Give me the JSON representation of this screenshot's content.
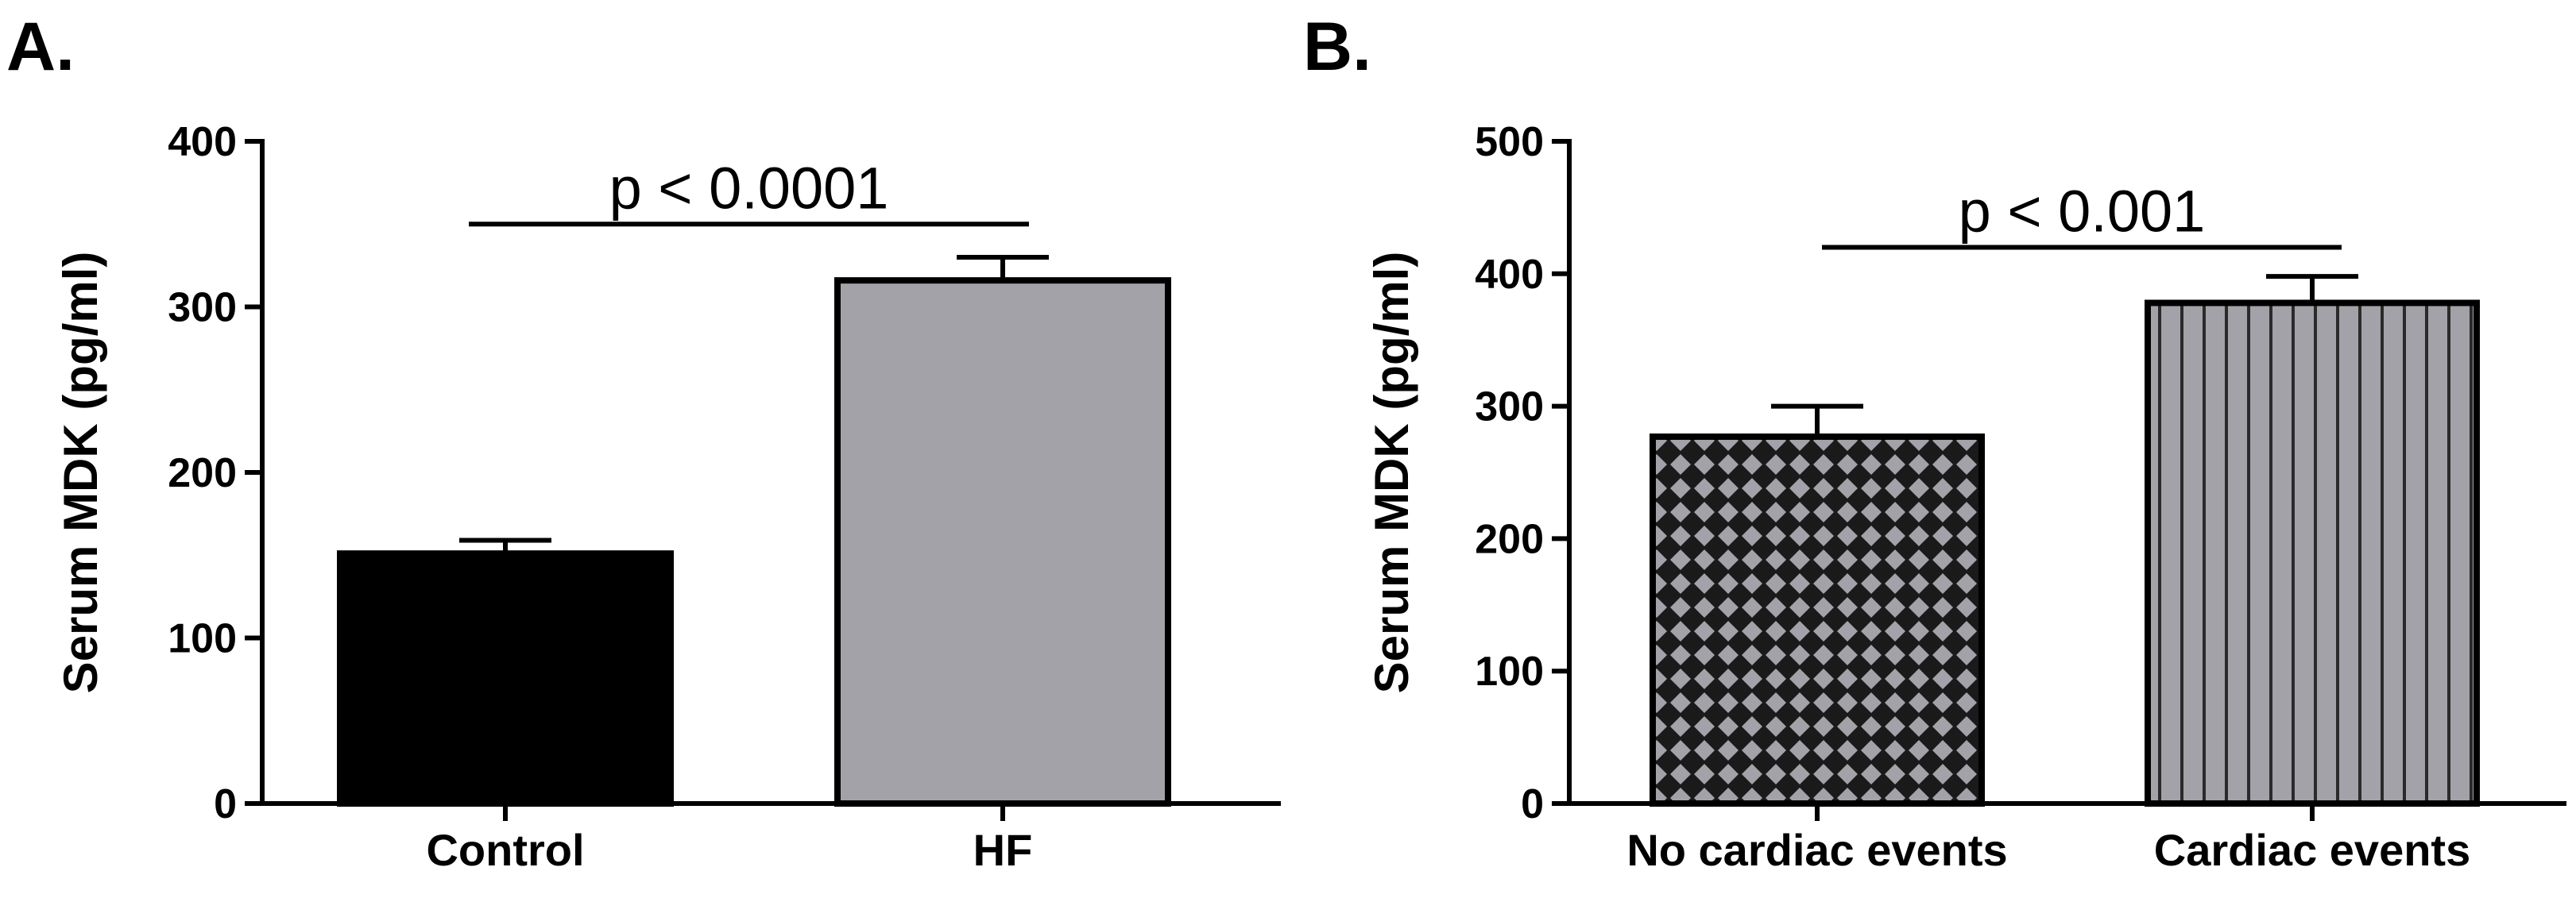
{
  "chart_data": [
    {
      "panel": "A.",
      "type": "bar",
      "ylabel": "Serum MDK (pg/ml)",
      "ylim": [
        0,
        400
      ],
      "yticks": [
        0,
        100,
        200,
        300,
        400
      ],
      "categories": [
        "Control",
        "HF"
      ],
      "values": [
        151,
        316
      ],
      "errors": [
        8,
        14
      ],
      "bar_colors": [
        "#000000",
        "#a3a2a8"
      ],
      "patterns": [
        "solid",
        "solid"
      ],
      "significance": {
        "label": "p < 0.0001",
        "y": 350
      }
    },
    {
      "panel": "B.",
      "type": "bar",
      "ylabel": "Serum MDK (pg/ml)",
      "ylim": [
        0,
        500
      ],
      "yticks": [
        0,
        100,
        200,
        300,
        400,
        500
      ],
      "categories": [
        "No cardiac events",
        "Cardiac events"
      ],
      "values": [
        277,
        378
      ],
      "errors": [
        23,
        20
      ],
      "bar_colors": [
        "#a3a2a8",
        "#a3a2a8"
      ],
      "patterns": [
        "diamond-crosshatch",
        "vertical-stripes"
      ],
      "significance": {
        "label": "p < 0.001",
        "y": 420
      }
    }
  ]
}
